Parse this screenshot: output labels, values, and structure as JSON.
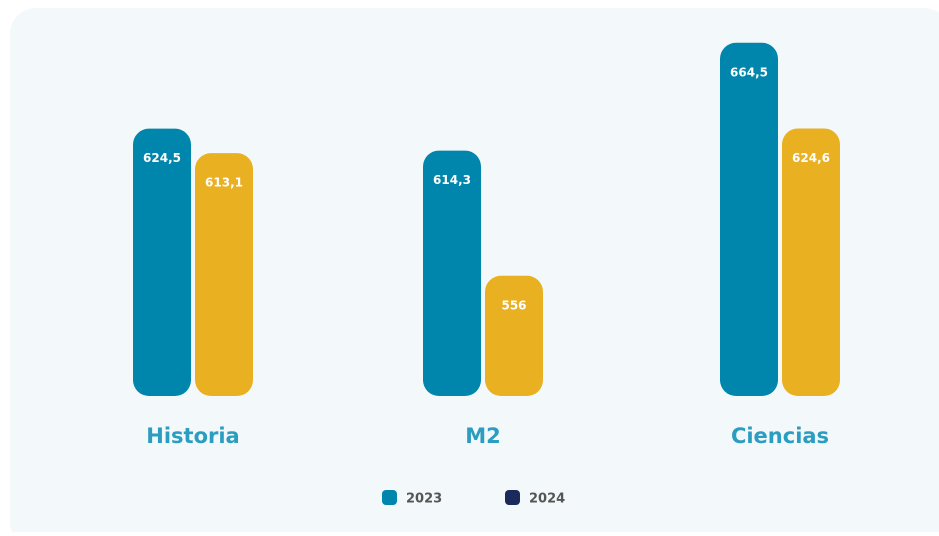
{
  "chart_data": {
    "type": "bar",
    "categories": [
      "Historia",
      "M2",
      "Ciencias"
    ],
    "series": [
      {
        "name": "2023",
        "color": "#0086ac",
        "legend_color": "#0086ac",
        "values": [
          624.5,
          614.3,
          664.5
        ],
        "value_labels": [
          "624,5",
          "614,3",
          "664,5"
        ]
      },
      {
        "name": "2024",
        "color": "#e9b021",
        "legend_color": "#1b2a5a",
        "values": [
          613.1,
          556,
          624.6
        ],
        "value_labels": [
          "613,1",
          "556",
          "624,6"
        ]
      }
    ],
    "ylim": [
      500,
      680
    ]
  }
}
